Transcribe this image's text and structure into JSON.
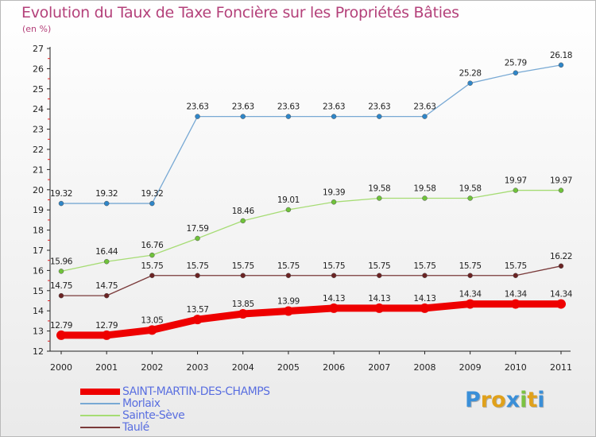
{
  "header": {
    "title": "Evolution du Taux de Taxe Foncière sur les Propriétés Bâties",
    "subtitle": "(en %)"
  },
  "logo": {
    "text": "Proxiti",
    "letters": [
      "P",
      "r",
      "o",
      "x",
      "i",
      "t",
      "i"
    ],
    "colors": [
      "#3a8fd8",
      "#e0a11b",
      "#e0a11b",
      "#3a8fd8",
      "#7cc242",
      "#e0a11b",
      "#3a8fd8"
    ]
  },
  "chart_data": {
    "type": "line",
    "title": "Evolution du Taux de Taxe Foncière sur les Propriétés Bâties",
    "ylabel": "(en %)",
    "xlabel": "",
    "categories": [
      "2000",
      "2001",
      "2002",
      "2003",
      "2004",
      "2005",
      "2006",
      "2007",
      "2008",
      "2009",
      "2010",
      "2011"
    ],
    "ylim": [
      12,
      27
    ],
    "yticks": [
      12,
      13,
      14,
      15,
      16,
      17,
      18,
      19,
      20,
      21,
      22,
      23,
      24,
      25,
      26,
      27
    ],
    "grid": false,
    "legend_position": "bottom-left",
    "series": [
      {
        "name": "SAINT-MARTIN-DES-CHAMPS",
        "color": "#ee0000",
        "values": [
          12.79,
          12.79,
          13.05,
          13.57,
          13.85,
          13.99,
          14.13,
          14.13,
          14.13,
          14.34,
          14.34,
          14.34
        ],
        "labels": [
          "12.79",
          "12.79",
          "13.05",
          "13.57",
          "13.85",
          "13.99",
          "14.13",
          "14.13",
          "14.13",
          "14.34",
          "14.34",
          "14.34"
        ]
      },
      {
        "name": "Morlaix",
        "color": "#78a9d4",
        "point_color": "#2f86c8",
        "values": [
          19.32,
          19.32,
          19.32,
          23.63,
          23.63,
          23.63,
          23.63,
          23.63,
          23.63,
          25.28,
          25.79,
          26.18
        ],
        "labels": [
          "19.32",
          "19.32",
          "19.32",
          "23.63",
          "23.63",
          "23.63",
          "23.63",
          "23.63",
          "23.63",
          "25.28",
          "25.79",
          "26.18"
        ]
      },
      {
        "name": "Sainte-Sève",
        "color": "#a6dc74",
        "point_color": "#6fc23a",
        "values": [
          15.96,
          16.44,
          16.76,
          17.59,
          18.46,
          19.01,
          19.39,
          19.58,
          19.58,
          19.58,
          19.97,
          19.97
        ],
        "labels": [
          "15.96",
          "16.44",
          "16.76",
          "17.59",
          "18.46",
          "19.01",
          "19.39",
          "19.58",
          "19.58",
          "19.58",
          "19.97",
          "19.97"
        ]
      },
      {
        "name": "Taulé",
        "color": "#7a3a3a",
        "point_color": "#6b2323",
        "values": [
          14.75,
          14.75,
          15.75,
          15.75,
          15.75,
          15.75,
          15.75,
          15.75,
          15.75,
          15.75,
          15.75,
          16.22
        ],
        "labels": [
          "14.75",
          "14.75",
          "15.75",
          "15.75",
          "15.75",
          "15.75",
          "15.75",
          "15.75",
          "15.75",
          "15.75",
          "15.75",
          "16.22"
        ]
      }
    ]
  }
}
